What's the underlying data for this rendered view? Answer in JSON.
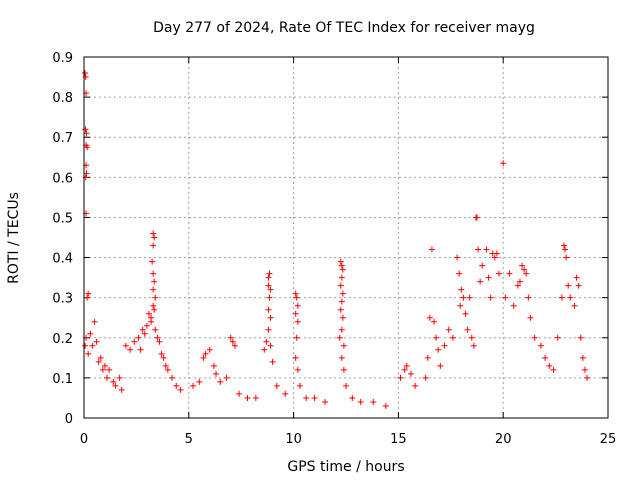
{
  "chart_data": {
    "type": "scatter",
    "title": "Day 277 of 2024, Rate Of TEC Index for receiver mayg",
    "xlabel": "GPS time / hours",
    "ylabel": "ROTI / TECUs",
    "xlim": [
      0,
      25
    ],
    "ylim": [
      0,
      0.9
    ],
    "x_ticks": [
      "0",
      "5",
      "10",
      "15",
      "20",
      "25"
    ],
    "y_ticks": [
      "0",
      "0.1",
      "0.2",
      "0.3",
      "0.4",
      "0.5",
      "0.6",
      "0.7",
      "0.8",
      "0.9"
    ],
    "x_tick_values": [
      0,
      5,
      10,
      15,
      20,
      25
    ],
    "y_tick_values": [
      0,
      0.1,
      0.2,
      0.3,
      0.4,
      0.5,
      0.6,
      0.7,
      0.8,
      0.9
    ],
    "grid": true,
    "marker": "plus",
    "color": "#ff0000",
    "series": [
      {
        "points": [
          [
            0.05,
            0.86
          ],
          [
            0.08,
            0.85
          ],
          [
            0.1,
            0.81
          ],
          [
            0.07,
            0.72
          ],
          [
            0.12,
            0.71
          ],
          [
            0.1,
            0.68
          ],
          [
            0.15,
            0.675
          ],
          [
            0.1,
            0.63
          ],
          [
            0.12,
            0.61
          ],
          [
            0.08,
            0.6
          ],
          [
            0.1,
            0.51
          ],
          [
            0.2,
            0.31
          ],
          [
            0.15,
            0.3
          ],
          [
            0.05,
            0.18
          ],
          [
            0.1,
            0.2
          ],
          [
            0.2,
            0.16
          ],
          [
            0.3,
            0.21
          ],
          [
            0.4,
            0.18
          ],
          [
            0.5,
            0.24
          ],
          [
            0.6,
            0.19
          ],
          [
            0.7,
            0.14
          ],
          [
            0.8,
            0.15
          ],
          [
            0.9,
            0.12
          ],
          [
            1.0,
            0.13
          ],
          [
            1.1,
            0.1
          ],
          [
            1.2,
            0.12
          ],
          [
            1.4,
            0.09
          ],
          [
            1.5,
            0.08
          ],
          [
            1.7,
            0.1
          ],
          [
            1.8,
            0.07
          ],
          [
            2.0,
            0.18
          ],
          [
            2.2,
            0.17
          ],
          [
            2.4,
            0.19
          ],
          [
            2.6,
            0.2
          ],
          [
            2.7,
            0.17
          ],
          [
            2.8,
            0.22
          ],
          [
            2.9,
            0.21
          ],
          [
            3.0,
            0.23
          ],
          [
            3.1,
            0.26
          ],
          [
            3.2,
            0.24
          ],
          [
            3.3,
            0.46
          ],
          [
            3.35,
            0.45
          ],
          [
            3.3,
            0.43
          ],
          [
            3.25,
            0.39
          ],
          [
            3.3,
            0.36
          ],
          [
            3.35,
            0.34
          ],
          [
            3.3,
            0.32
          ],
          [
            3.4,
            0.3
          ],
          [
            3.3,
            0.28
          ],
          [
            3.35,
            0.27
          ],
          [
            3.2,
            0.25
          ],
          [
            3.4,
            0.22
          ],
          [
            3.5,
            0.2
          ],
          [
            3.6,
            0.19
          ],
          [
            3.7,
            0.16
          ],
          [
            3.8,
            0.15
          ],
          [
            3.9,
            0.13
          ],
          [
            4.0,
            0.12
          ],
          [
            4.2,
            0.1
          ],
          [
            4.4,
            0.08
          ],
          [
            4.6,
            0.07
          ],
          [
            5.2,
            0.08
          ],
          [
            5.5,
            0.09
          ],
          [
            5.7,
            0.15
          ],
          [
            5.8,
            0.16
          ],
          [
            6.0,
            0.17
          ],
          [
            6.2,
            0.13
          ],
          [
            6.3,
            0.11
          ],
          [
            6.5,
            0.09
          ],
          [
            6.8,
            0.1
          ],
          [
            7.0,
            0.2
          ],
          [
            7.1,
            0.19
          ],
          [
            7.2,
            0.18
          ],
          [
            7.4,
            0.06
          ],
          [
            7.8,
            0.05
          ],
          [
            8.2,
            0.05
          ],
          [
            8.6,
            0.17
          ],
          [
            8.7,
            0.19
          ],
          [
            8.8,
            0.35
          ],
          [
            8.85,
            0.36
          ],
          [
            8.8,
            0.33
          ],
          [
            8.9,
            0.32
          ],
          [
            8.85,
            0.3
          ],
          [
            8.8,
            0.27
          ],
          [
            8.9,
            0.25
          ],
          [
            8.8,
            0.22
          ],
          [
            8.9,
            0.18
          ],
          [
            9.0,
            0.14
          ],
          [
            9.2,
            0.08
          ],
          [
            9.6,
            0.06
          ],
          [
            10.1,
            0.31
          ],
          [
            10.15,
            0.3
          ],
          [
            10.2,
            0.28
          ],
          [
            10.1,
            0.26
          ],
          [
            10.2,
            0.24
          ],
          [
            10.15,
            0.2
          ],
          [
            10.1,
            0.15
          ],
          [
            10.2,
            0.12
          ],
          [
            10.3,
            0.08
          ],
          [
            10.6,
            0.05
          ],
          [
            11.0,
            0.05
          ],
          [
            11.5,
            0.04
          ],
          [
            12.25,
            0.39
          ],
          [
            12.3,
            0.38
          ],
          [
            12.35,
            0.37
          ],
          [
            12.3,
            0.35
          ],
          [
            12.25,
            0.33
          ],
          [
            12.35,
            0.31
          ],
          [
            12.3,
            0.29
          ],
          [
            12.25,
            0.27
          ],
          [
            12.35,
            0.25
          ],
          [
            12.3,
            0.22
          ],
          [
            12.2,
            0.2
          ],
          [
            12.4,
            0.18
          ],
          [
            12.3,
            0.15
          ],
          [
            12.4,
            0.12
          ],
          [
            12.5,
            0.08
          ],
          [
            12.8,
            0.05
          ],
          [
            13.2,
            0.04
          ],
          [
            13.8,
            0.04
          ],
          [
            14.4,
            0.03
          ],
          [
            15.1,
            0.1
          ],
          [
            15.3,
            0.12
          ],
          [
            15.4,
            0.13
          ],
          [
            15.6,
            0.11
          ],
          [
            15.8,
            0.08
          ],
          [
            16.3,
            0.1
          ],
          [
            16.4,
            0.15
          ],
          [
            16.5,
            0.25
          ],
          [
            16.6,
            0.42
          ],
          [
            16.7,
            0.24
          ],
          [
            16.8,
            0.2
          ],
          [
            16.9,
            0.17
          ],
          [
            17.0,
            0.13
          ],
          [
            17.2,
            0.18
          ],
          [
            17.4,
            0.22
          ],
          [
            17.6,
            0.2
          ],
          [
            17.8,
            0.4
          ],
          [
            17.9,
            0.36
          ],
          [
            18.0,
            0.32
          ],
          [
            17.95,
            0.28
          ],
          [
            18.1,
            0.3
          ],
          [
            18.2,
            0.26
          ],
          [
            18.3,
            0.22
          ],
          [
            18.4,
            0.3
          ],
          [
            18.5,
            0.2
          ],
          [
            18.6,
            0.18
          ],
          [
            18.7,
            0.5
          ],
          [
            18.75,
            0.5
          ],
          [
            18.8,
            0.42
          ],
          [
            18.9,
            0.34
          ],
          [
            19.0,
            0.38
          ],
          [
            19.2,
            0.42
          ],
          [
            19.3,
            0.35
          ],
          [
            19.4,
            0.3
          ],
          [
            19.5,
            0.41
          ],
          [
            19.6,
            0.4
          ],
          [
            19.7,
            0.41
          ],
          [
            19.8,
            0.36
          ],
          [
            20.0,
            0.635
          ],
          [
            20.1,
            0.3
          ],
          [
            20.3,
            0.36
          ],
          [
            20.5,
            0.28
          ],
          [
            20.7,
            0.33
          ],
          [
            20.8,
            0.34
          ],
          [
            20.9,
            0.38
          ],
          [
            21.0,
            0.37
          ],
          [
            21.1,
            0.36
          ],
          [
            21.2,
            0.3
          ],
          [
            21.3,
            0.25
          ],
          [
            21.5,
            0.2
          ],
          [
            21.8,
            0.18
          ],
          [
            22.0,
            0.15
          ],
          [
            22.2,
            0.13
          ],
          [
            22.4,
            0.12
          ],
          [
            22.6,
            0.2
          ],
          [
            22.8,
            0.3
          ],
          [
            22.9,
            0.43
          ],
          [
            22.95,
            0.42
          ],
          [
            23.0,
            0.4
          ],
          [
            23.1,
            0.33
          ],
          [
            23.2,
            0.3
          ],
          [
            23.4,
            0.28
          ],
          [
            23.5,
            0.35
          ],
          [
            23.6,
            0.33
          ],
          [
            23.7,
            0.2
          ],
          [
            23.8,
            0.15
          ],
          [
            23.9,
            0.12
          ],
          [
            24.0,
            0.1
          ]
        ]
      }
    ]
  }
}
